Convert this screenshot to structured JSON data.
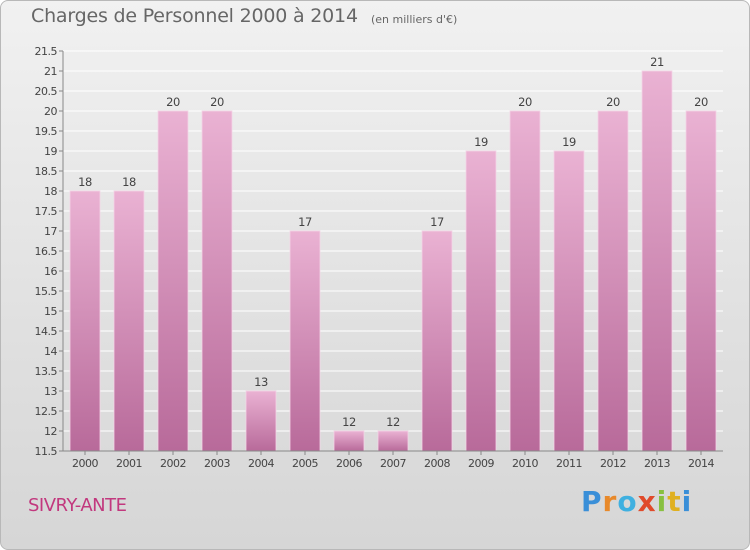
{
  "header": {
    "title": "Charges de Personnel 2000 à 2014",
    "subtitle": "(en milliers d'€)"
  },
  "footer": {
    "town": "SIVRY-ANTE",
    "brand": "Proxiti",
    "brand_colors": [
      "#3a8fd8",
      "#e8892a",
      "#3fb0e0",
      "#e04a2a",
      "#88c040",
      "#e0b020",
      "#3a8fd8"
    ]
  },
  "colors": {
    "bar_top": "#eab2d3",
    "bar_bottom": "#b86a9a",
    "axis": "#888888",
    "grid": "#ffffff",
    "text": "#444444"
  },
  "chart_data": {
    "type": "bar",
    "categories": [
      "2000",
      "2001",
      "2002",
      "2003",
      "2004",
      "2005",
      "2006",
      "2007",
      "2008",
      "2009",
      "2010",
      "2011",
      "2012",
      "2013",
      "2014"
    ],
    "values": [
      18,
      18,
      20,
      20,
      13,
      17,
      12,
      12,
      17,
      19,
      20,
      19,
      20,
      21,
      20
    ],
    "ylim": [
      11.5,
      21.5
    ],
    "yticks": [
      "11.5",
      "12",
      "12.5",
      "13",
      "13.5",
      "14",
      "14.5",
      "15",
      "15.5",
      "16",
      "16.5",
      "17",
      "17.5",
      "18",
      "18.5",
      "19",
      "19.5",
      "20",
      "20.5",
      "21",
      "21.5"
    ],
    "data_labels": [
      "18",
      "18",
      "20",
      "20",
      "13",
      "17",
      "12",
      "12",
      "17",
      "19",
      "20",
      "19",
      "20",
      "21",
      "20"
    ],
    "grid": true,
    "xlabel": "",
    "ylabel": ""
  }
}
